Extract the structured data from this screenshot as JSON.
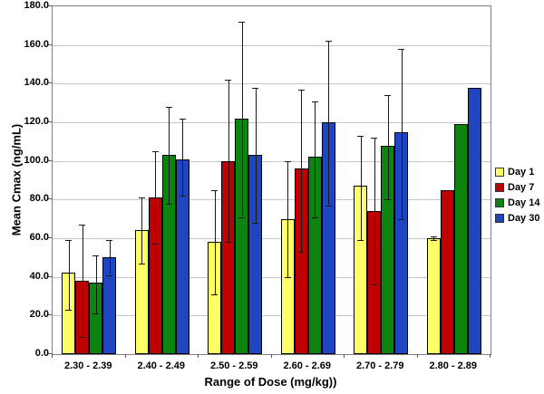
{
  "chart_data": {
    "type": "bar",
    "title": "",
    "xlabel": "Range of Dose (mg/kg))",
    "ylabel": "Mean Cmax (ng/mL)",
    "ylim": [
      0,
      180
    ],
    "ytick_step": 20,
    "ytick_decimals": 1,
    "grid": true,
    "legend_position": "right",
    "categories": [
      "2.30 - 2.39",
      "2.40 - 2.49",
      "2.50 - 2.59",
      "2.60 - 2.69",
      "2.70 - 2.79",
      "2.80 - 2.89"
    ],
    "series": [
      {
        "name": "Day 1",
        "color": "#ffff66",
        "values": [
          42,
          64,
          58,
          70,
          87,
          60
        ],
        "error_low": [
          23,
          47,
          31,
          40,
          59,
          59
        ],
        "error_high": [
          59,
          81,
          85,
          100,
          113,
          61
        ]
      },
      {
        "name": "Day 7",
        "color": "#c00000",
        "values": [
          38,
          81,
          100,
          96,
          74,
          85
        ],
        "error_low": [
          9,
          57,
          58,
          53,
          36,
          null
        ],
        "error_high": [
          67,
          105,
          142,
          137,
          112,
          null
        ]
      },
      {
        "name": "Day 14",
        "color": "#0e8410",
        "values": [
          37,
          103,
          122,
          102,
          108,
          119
        ],
        "error_low": [
          21,
          78,
          71,
          71,
          80,
          null
        ],
        "error_high": [
          51,
          128,
          172,
          131,
          134,
          null
        ]
      },
      {
        "name": "Day 30",
        "color": "#2045c0",
        "values": [
          50,
          101,
          103,
          120,
          115,
          138
        ],
        "error_low": [
          41,
          82,
          68,
          77,
          70,
          null
        ],
        "error_high": [
          59,
          122,
          138,
          162,
          158,
          null
        ]
      }
    ]
  },
  "colors": {
    "gridline": "#c6c6c6",
    "plot_border": "#808080",
    "bar_border": "#000000",
    "error_bar": "#1a1a1a",
    "background": "#ffffff",
    "text": "#000000"
  }
}
